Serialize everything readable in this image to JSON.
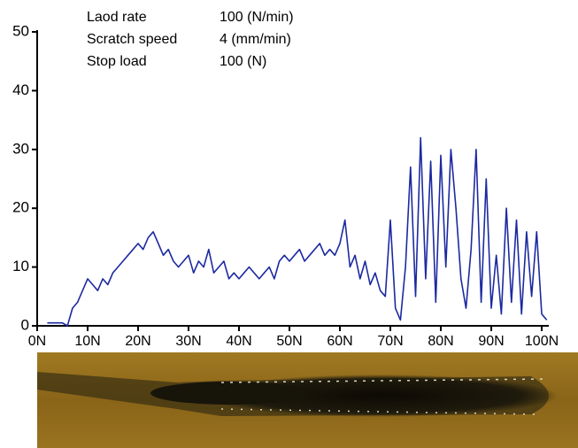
{
  "chart_data": {
    "type": "line",
    "annotations": [
      [
        "Laod rate",
        "100 (N/min)"
      ],
      [
        "Scratch speed",
        "4 (mm/min)"
      ],
      [
        "Stop load",
        "100 (N)"
      ]
    ],
    "x": [
      2,
      3,
      4,
      5,
      6,
      7,
      8,
      9,
      10,
      11,
      12,
      13,
      14,
      15,
      16,
      17,
      18,
      19,
      20,
      21,
      22,
      23,
      24,
      25,
      26,
      27,
      28,
      29,
      30,
      31,
      32,
      33,
      34,
      35,
      36,
      37,
      38,
      39,
      40,
      41,
      42,
      43,
      44,
      45,
      46,
      47,
      48,
      49,
      50,
      51,
      52,
      53,
      54,
      55,
      56,
      57,
      58,
      59,
      60,
      61,
      62,
      63,
      64,
      65,
      66,
      67,
      68,
      69,
      70,
      71,
      72,
      73,
      74,
      75,
      76,
      77,
      78,
      79,
      80,
      81,
      82,
      83,
      84,
      85,
      86,
      87,
      88,
      89,
      90,
      91,
      92,
      93,
      94,
      95,
      96,
      97,
      98,
      99,
      100,
      101
    ],
    "values": [
      0.5,
      0.5,
      0.5,
      0.5,
      0,
      3,
      4,
      6,
      8,
      7,
      6,
      8,
      7,
      9,
      10,
      11,
      12,
      13,
      14,
      13,
      15,
      16,
      14,
      12,
      13,
      11,
      10,
      11,
      12,
      9,
      11,
      10,
      13,
      9,
      10,
      11,
      8,
      9,
      8,
      9,
      10,
      9,
      8,
      9,
      10,
      8,
      11,
      12,
      11,
      12,
      13,
      11,
      12,
      13,
      14,
      12,
      13,
      12,
      14,
      18,
      10,
      12,
      8,
      11,
      7,
      9,
      6,
      5,
      18,
      3,
      1,
      10,
      27,
      5,
      32,
      8,
      28,
      4,
      29,
      10,
      30,
      20,
      8,
      3,
      13,
      30,
      4,
      25,
      3,
      12,
      2,
      20,
      4,
      18,
      2,
      16,
      5,
      16,
      2,
      1
    ],
    "color": "#1c2aa0",
    "xlim": [
      0,
      101.4
    ],
    "ylim": [
      0,
      50
    ],
    "xticks": [
      {
        "value": 0,
        "label": "0N"
      },
      {
        "value": 10,
        "label": "10N"
      },
      {
        "value": 20,
        "label": "20N"
      },
      {
        "value": 30,
        "label": "30N"
      },
      {
        "value": 40,
        "label": "40N"
      },
      {
        "value": 50,
        "label": "50N"
      },
      {
        "value": 60,
        "label": "60N"
      },
      {
        "value": 70,
        "label": "70N"
      },
      {
        "value": 80,
        "label": "80N"
      },
      {
        "value": 90,
        "label": "90N"
      },
      {
        "value": 100,
        "label": "100N"
      }
    ],
    "yticks": [
      0,
      10,
      20,
      30,
      40,
      50
    ],
    "grid": false
  }
}
